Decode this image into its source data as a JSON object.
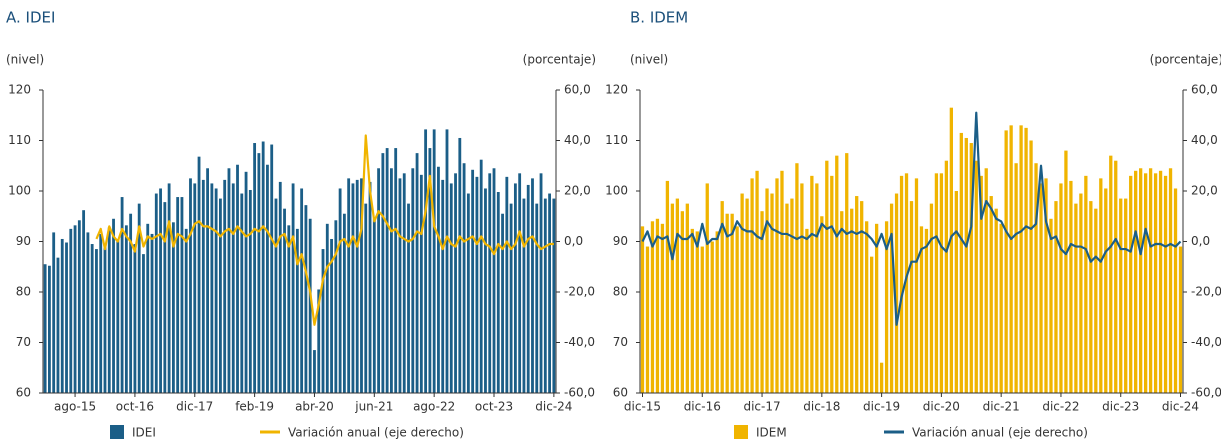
{
  "chart_data": [
    {
      "type": "bar",
      "title": "A. IDEI",
      "y_label": "(nivel)",
      "y2_label": "(porcentaje)",
      "categories": [
        null,
        null,
        null,
        null,
        null,
        null,
        null,
        "ago-15",
        null,
        null,
        null,
        null,
        null,
        null,
        null,
        null,
        null,
        null,
        null,
        null,
        null,
        "oct-16",
        null,
        null,
        null,
        null,
        null,
        null,
        null,
        null,
        null,
        null,
        null,
        null,
        null,
        "dic-17",
        null,
        null,
        null,
        null,
        null,
        null,
        null,
        null,
        null,
        null,
        null,
        null,
        null,
        "feb-19",
        null,
        null,
        null,
        null,
        null,
        null,
        null,
        null,
        null,
        null,
        null,
        null,
        null,
        "abr-20",
        null,
        null,
        null,
        null,
        null,
        null,
        null,
        null,
        null,
        null,
        null,
        null,
        null,
        "jun-21",
        null,
        null,
        null,
        null,
        null,
        null,
        null,
        null,
        null,
        null,
        null,
        null,
        null,
        "ago-22",
        null,
        null,
        null,
        null,
        null,
        null,
        null,
        null,
        null,
        null,
        null,
        null,
        null,
        "oct-23",
        null,
        null,
        null,
        null,
        null,
        null,
        null,
        null,
        null,
        null,
        null,
        null,
        null,
        "dic-24"
      ],
      "series": [
        {
          "name": "IDEI",
          "color": "#1b5e87",
          "kind": "bar",
          "values": [
            85.5,
            85.2,
            91.8,
            86.8,
            90.5,
            89.8,
            92.5,
            93.2,
            94.2,
            96.2,
            91.8,
            89.5,
            88.5,
            91.5,
            89.5,
            92.8,
            94.5,
            90.5,
            98.8,
            93.2,
            95.5,
            89.5,
            97.5,
            87.5,
            93.5,
            91.5,
            99.5,
            100.5,
            97.8,
            101.5,
            93.8,
            98.8,
            98.8,
            92.5,
            102.5,
            101.5,
            106.8,
            102.2,
            104.5,
            101.5,
            100.5,
            98.5,
            102.2,
            104.5,
            101.5,
            105.2,
            99.5,
            103.8,
            100.2,
            109.5,
            107.5,
            109.8,
            105.2,
            109.2,
            98.5,
            101.8,
            96.5,
            93.2,
            101.5,
            92.5,
            100.5,
            97.2,
            94.5,
            68.5,
            80.5,
            88.5,
            93.5,
            90.5,
            94.2,
            100.5,
            95.5,
            102.5,
            101.5,
            102.2,
            102.5,
            97.5,
            101.8,
            94.5,
            104.5,
            107.5,
            108.5,
            104.5,
            108.5,
            102.5,
            103.5,
            97.5,
            104.5,
            107.5,
            103.2,
            112.2,
            108.5,
            112.2,
            104.8,
            102.2,
            112.2,
            101.5,
            103.5,
            110.5,
            105.5,
            99.5,
            104.2,
            102.8,
            106.2,
            100.5,
            103.5,
            104.5,
            99.8,
            95.5,
            102.8,
            97.5,
            101.5,
            103.5,
            98.5,
            101.2,
            102.5,
            97.5,
            103.5,
            98.5,
            99.5,
            98.5
          ]
        },
        {
          "name": "Variación anual (eje derecho)",
          "color": "#f0b400",
          "kind": "line",
          "axis": "y2",
          "values": [
            null,
            null,
            null,
            null,
            null,
            null,
            null,
            null,
            null,
            null,
            null,
            null,
            1,
            5,
            -3,
            6,
            2,
            0,
            5,
            2,
            0,
            -4,
            6,
            -2,
            2,
            1,
            2,
            3,
            0,
            8,
            -2,
            3,
            2,
            0,
            3,
            7,
            8,
            6,
            6,
            5,
            4,
            2,
            4,
            5,
            3,
            6,
            4,
            2,
            3,
            5,
            4,
            6,
            4,
            1,
            -2,
            2,
            3,
            -2,
            2,
            -9,
            -5,
            -12,
            -20,
            -33,
            -25,
            -15,
            -10,
            -8,
            -5,
            0,
            1,
            -2,
            2,
            -2,
            5,
            42,
            20,
            8,
            12,
            10,
            7,
            4,
            5,
            2,
            1,
            0,
            1,
            4,
            3,
            12,
            26,
            6,
            2,
            -3,
            2,
            -1,
            -2,
            2,
            0,
            1,
            2,
            -1,
            2,
            -1,
            -2,
            -5,
            -1,
            -3,
            0,
            -3,
            -1,
            4,
            -2,
            1,
            2,
            -1,
            -3,
            -2,
            -1,
            -1
          ]
        }
      ],
      "ylim": [
        60,
        120
      ],
      "yticks": [
        60,
        70,
        80,
        90,
        100,
        110,
        120
      ],
      "y2lim": [
        -60,
        60
      ],
      "y2ticks": [
        {
          "value": -60,
          "label": "-60,0"
        },
        {
          "value": -40,
          "label": "-40,0"
        },
        {
          "value": -20,
          "label": "-20,0"
        },
        {
          "value": 0,
          "label": "0,0"
        },
        {
          "value": 20,
          "label": "20,0"
        },
        {
          "value": 40,
          "label": "40,0"
        },
        {
          "value": 60,
          "label": "60,0"
        }
      ],
      "grid": false
    },
    {
      "type": "bar",
      "title": "B. IDEM",
      "y_label": "(nivel)",
      "y2_label": "(porcentaje)",
      "categories": [
        "dic-15",
        null,
        null,
        null,
        null,
        null,
        null,
        null,
        null,
        null,
        null,
        null,
        "dic-16",
        null,
        null,
        null,
        null,
        null,
        null,
        null,
        null,
        null,
        null,
        null,
        "dic-17",
        null,
        null,
        null,
        null,
        null,
        null,
        null,
        null,
        null,
        null,
        null,
        "dic-18",
        null,
        null,
        null,
        null,
        null,
        null,
        null,
        null,
        null,
        null,
        null,
        "dic-19",
        null,
        null,
        null,
        null,
        null,
        null,
        null,
        null,
        null,
        null,
        null,
        "dic-20",
        null,
        null,
        null,
        null,
        null,
        null,
        null,
        null,
        null,
        null,
        null,
        "dic-21",
        null,
        null,
        null,
        null,
        null,
        null,
        null,
        null,
        null,
        null,
        null,
        "dic-22",
        null,
        null,
        null,
        null,
        null,
        null,
        null,
        null,
        null,
        null,
        null,
        "dic-23",
        null,
        null,
        null,
        null,
        null,
        null,
        null,
        null,
        null,
        null,
        null,
        "dic-24"
      ],
      "series": [
        {
          "name": "IDEM",
          "color": "#f0b400",
          "kind": "bar",
          "values": [
            93,
            89,
            94,
            94.5,
            93.5,
            102,
            97.5,
            98.5,
            96,
            97.5,
            92.5,
            92,
            89,
            101.5,
            90,
            92,
            98,
            95.5,
            95.5,
            93,
            99.5,
            98.5,
            102.5,
            104,
            96,
            100.5,
            99.5,
            102.5,
            104,
            97.5,
            98.5,
            105.5,
            101.5,
            92.5,
            103,
            101.5,
            95,
            106,
            103,
            107,
            96,
            107.5,
            96.5,
            99,
            98,
            94,
            87,
            93.5,
            66,
            94,
            97.5,
            99.5,
            103,
            103.5,
            98,
            102.5,
            93,
            92.5,
            97.5,
            103.5,
            103.5,
            106,
            116.5,
            100,
            111.5,
            110.5,
            109.5,
            106,
            103,
            104.5,
            99,
            96.5,
            93.5,
            112,
            113,
            105.5,
            113,
            112.5,
            110,
            105.5,
            101.5,
            102.5,
            94.5,
            98,
            101.5,
            108,
            102,
            97.5,
            99.5,
            103,
            98,
            96.5,
            102.5,
            100.5,
            107,
            106,
            98.5,
            98.5,
            103,
            104,
            104.5,
            103.5,
            104.5,
            103.5,
            104,
            103,
            104.5,
            100.5,
            89
          ]
        },
        {
          "name": "Variación anual (eje derecho)",
          "color": "#1b5e87",
          "kind": "line",
          "axis": "y2",
          "values": [
            0,
            4,
            -2,
            2,
            1,
            2,
            -7,
            3,
            1,
            1,
            3,
            -2,
            7,
            -1,
            1,
            1,
            7,
            2,
            3,
            8,
            5,
            4,
            4,
            2,
            1,
            8,
            5,
            4,
            3,
            3,
            2,
            1,
            2,
            1,
            3,
            2,
            7,
            5,
            6,
            2,
            5,
            3,
            4,
            3,
            4,
            3,
            1,
            -2,
            3,
            -3,
            3,
            -33,
            -22,
            -14,
            -8,
            -8,
            -3,
            -2,
            1,
            2,
            -2,
            -4,
            2,
            4,
            1,
            -2,
            6,
            51,
            9,
            16,
            13,
            9,
            8,
            4,
            1,
            3,
            4,
            6,
            5,
            7,
            30,
            8,
            1,
            2,
            -3,
            -5,
            -1,
            -2,
            -2,
            -3,
            -8,
            -6,
            -8,
            -4,
            -2,
            1,
            -3,
            -3,
            -4,
            4,
            -5,
            5,
            -2,
            -1,
            -1,
            -2,
            -1,
            -2,
            0
          ]
        }
      ],
      "ylim": [
        60,
        120
      ],
      "yticks": [
        60,
        70,
        80,
        90,
        100,
        110,
        120
      ],
      "y2lim": [
        -60,
        60
      ],
      "y2ticks": [
        {
          "value": -60,
          "label": "-60,0"
        },
        {
          "value": -40,
          "label": "-40,0"
        },
        {
          "value": -20,
          "label": "-20,0"
        },
        {
          "value": 0,
          "label": "0,0"
        },
        {
          "value": 20,
          "label": "20,0"
        },
        {
          "value": 40,
          "label": "40,0"
        },
        {
          "value": 60,
          "label": "60,0"
        }
      ],
      "grid": false
    }
  ]
}
